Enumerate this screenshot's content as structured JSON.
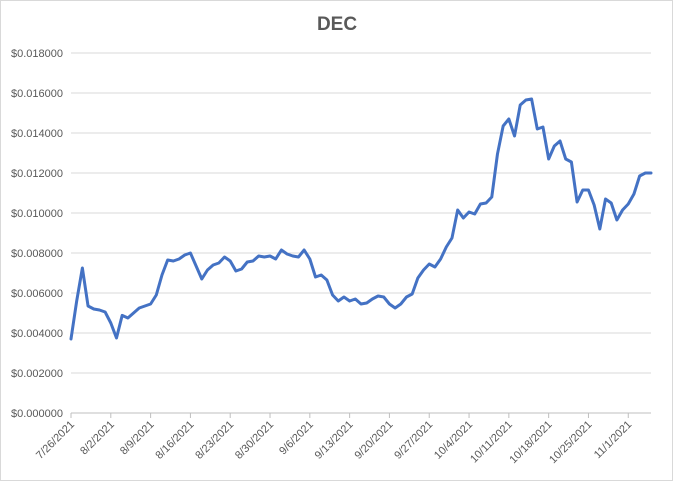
{
  "chart_data": {
    "type": "line",
    "title": "DEC",
    "xlabel": "",
    "ylabel": "",
    "ylim": [
      0,
      0.018
    ],
    "y_ticks": [
      0,
      0.002,
      0.004,
      0.006,
      0.008,
      0.01,
      0.012,
      0.014,
      0.016,
      0.018
    ],
    "y_tick_labels": [
      "$0.000000",
      "$0.002000",
      "$0.004000",
      "$0.006000",
      "$0.008000",
      "$0.010000",
      "$0.012000",
      "$0.014000",
      "$0.016000",
      "$0.018000"
    ],
    "x_range": [
      "2021-07-26",
      "2021-11-05"
    ],
    "x_ticks": [
      "2021-07-26",
      "2021-08-02",
      "2021-08-09",
      "2021-08-16",
      "2021-08-23",
      "2021-08-30",
      "2021-09-06",
      "2021-09-13",
      "2021-09-20",
      "2021-09-27",
      "2021-10-04",
      "2021-10-11",
      "2021-10-18",
      "2021-10-25",
      "2021-11-01"
    ],
    "x_tick_labels": [
      "7/26/2021",
      "8/2/2021",
      "8/9/2021",
      "8/16/2021",
      "8/23/2021",
      "8/30/2021",
      "9/6/2021",
      "9/13/2021",
      "9/20/2021",
      "9/27/2021",
      "10/4/2021",
      "10/11/2021",
      "10/18/2021",
      "10/25/2021",
      "11/1/2021"
    ],
    "grid": true,
    "legend": "none",
    "color": "#4472c4",
    "series": [
      {
        "x": [
          "2021-07-26",
          "2021-07-27",
          "2021-07-28",
          "2021-07-29",
          "2021-07-30",
          "2021-07-31",
          "2021-08-01",
          "2021-08-02",
          "2021-08-03",
          "2021-08-04",
          "2021-08-05",
          "2021-08-06",
          "2021-08-07",
          "2021-08-08",
          "2021-08-09",
          "2021-08-10",
          "2021-08-11",
          "2021-08-12",
          "2021-08-13",
          "2021-08-14",
          "2021-08-15",
          "2021-08-16",
          "2021-08-17",
          "2021-08-18",
          "2021-08-19",
          "2021-08-20",
          "2021-08-21",
          "2021-08-22",
          "2021-08-23",
          "2021-08-24",
          "2021-08-25",
          "2021-08-26",
          "2021-08-27",
          "2021-08-28",
          "2021-08-29",
          "2021-08-30",
          "2021-08-31",
          "2021-09-01",
          "2021-09-02",
          "2021-09-03",
          "2021-09-04",
          "2021-09-05",
          "2021-09-06",
          "2021-09-07",
          "2021-09-08",
          "2021-09-09",
          "2021-09-10",
          "2021-09-11",
          "2021-09-12",
          "2021-09-13",
          "2021-09-14",
          "2021-09-15",
          "2021-09-16",
          "2021-09-17",
          "2021-09-18",
          "2021-09-19",
          "2021-09-20",
          "2021-09-21",
          "2021-09-22",
          "2021-09-23",
          "2021-09-24",
          "2021-09-25",
          "2021-09-26",
          "2021-09-27",
          "2021-09-28",
          "2021-09-29",
          "2021-09-30",
          "2021-10-01",
          "2021-10-02",
          "2021-10-03",
          "2021-10-04",
          "2021-10-05",
          "2021-10-06",
          "2021-10-07",
          "2021-10-08",
          "2021-10-09",
          "2021-10-10",
          "2021-10-11",
          "2021-10-12",
          "2021-10-13",
          "2021-10-14",
          "2021-10-15",
          "2021-10-16",
          "2021-10-17",
          "2021-10-18",
          "2021-10-19",
          "2021-10-20",
          "2021-10-21",
          "2021-10-22",
          "2021-10-23",
          "2021-10-24",
          "2021-10-25",
          "2021-10-26",
          "2021-10-27",
          "2021-10-28",
          "2021-10-29",
          "2021-10-30",
          "2021-10-31",
          "2021-11-01",
          "2021-11-02",
          "2021-11-03",
          "2021-11-04",
          "2021-11-05"
        ],
        "values": [
          0.0037,
          0.0056,
          0.00725,
          0.00535,
          0.0052,
          0.00515,
          0.00505,
          0.0045,
          0.00375,
          0.00488,
          0.00475,
          0.005,
          0.00525,
          0.00535,
          0.00545,
          0.0059,
          0.0069,
          0.00765,
          0.0076,
          0.0077,
          0.0079,
          0.008,
          0.00735,
          0.0067,
          0.00715,
          0.0074,
          0.0075,
          0.0078,
          0.0076,
          0.0071,
          0.0072,
          0.00755,
          0.0076,
          0.00785,
          0.0078,
          0.00785,
          0.0077,
          0.00815,
          0.00795,
          0.00785,
          0.0078,
          0.00815,
          0.0077,
          0.0068,
          0.0069,
          0.00665,
          0.0059,
          0.0056,
          0.0058,
          0.0056,
          0.0057,
          0.00545,
          0.0055,
          0.0057,
          0.00585,
          0.0058,
          0.00545,
          0.00525,
          0.00545,
          0.0058,
          0.00595,
          0.00675,
          0.00715,
          0.00745,
          0.0073,
          0.0077,
          0.0083,
          0.00875,
          0.01015,
          0.00975,
          0.01005,
          0.00995,
          0.01045,
          0.0105,
          0.0108,
          0.01295,
          0.01435,
          0.0147,
          0.01385,
          0.0154,
          0.01565,
          0.0157,
          0.0142,
          0.0143,
          0.0127,
          0.01335,
          0.0136,
          0.0127,
          0.01255,
          0.01055,
          0.01115,
          0.01115,
          0.0104,
          0.0092,
          0.0107,
          0.0105,
          0.00965,
          0.01015,
          0.01045,
          0.01095,
          0.01185,
          0.012,
          0.012
        ]
      }
    ]
  }
}
